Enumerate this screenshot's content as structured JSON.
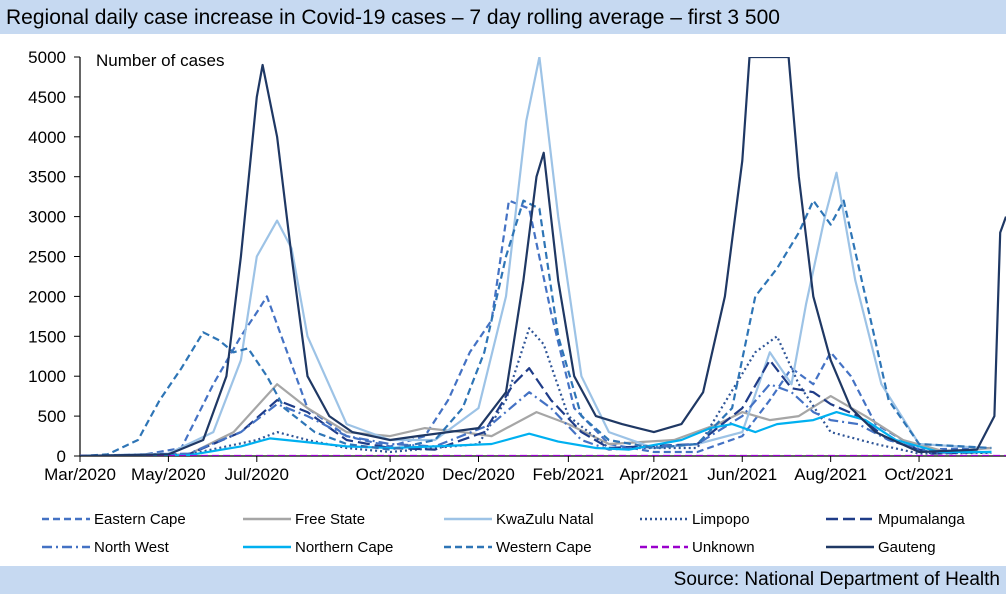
{
  "title": "Regional daily case increase in Covid-19 cases – 7 day rolling average – first 3 500",
  "source": "Source: National Department of Health",
  "chart_data": {
    "type": "line",
    "title": "Regional daily case increase in Covid-19 cases – 7 day rolling average – first 3 500",
    "ylabel": "Number of cases",
    "xlabel": "",
    "ylim": [
      0,
      5000
    ],
    "yticks": [
      0,
      500,
      1000,
      1500,
      2000,
      2500,
      3000,
      3500,
      4000,
      4500,
      5000
    ],
    "xlim": [
      "2020-03-01",
      "2021-11-30"
    ],
    "x_tick_labels": [
      {
        "date": "2020-03-01",
        "label": "Mar/2020"
      },
      {
        "date": "2020-05-01",
        "label": "May/2020"
      },
      {
        "date": "2020-07-01",
        "label": "Jul/2020"
      },
      {
        "date": "2020-10-01",
        "label": "Oct/2020"
      },
      {
        "date": "2020-12-01",
        "label": "Dec/2020"
      },
      {
        "date": "2021-02-01",
        "label": "Feb/2021"
      },
      {
        "date": "2021-04-01",
        "label": "Apr/2021"
      },
      {
        "date": "2021-06-01",
        "label": "Jun/2021"
      },
      {
        "date": "2021-08-01",
        "label": "Aug/2021"
      },
      {
        "date": "2021-10-01",
        "label": "Oct/2021"
      }
    ],
    "grid": false,
    "legend_position": "bottom",
    "series": [
      {
        "name": "Eastern Cape",
        "color": "#4472c4",
        "style": "dash",
        "points": [
          [
            "2020-03-01",
            0
          ],
          [
            "2020-04-15",
            20
          ],
          [
            "2020-05-10",
            100
          ],
          [
            "2020-06-01",
            900
          ],
          [
            "2020-06-20",
            1500
          ],
          [
            "2020-07-01",
            1800
          ],
          [
            "2020-07-08",
            2000
          ],
          [
            "2020-07-20",
            1400
          ],
          [
            "2020-08-05",
            600
          ],
          [
            "2020-09-01",
            250
          ],
          [
            "2020-10-01",
            120
          ],
          [
            "2020-10-25",
            250
          ],
          [
            "2020-11-10",
            700
          ],
          [
            "2020-11-25",
            1300
          ],
          [
            "2020-12-10",
            1700
          ],
          [
            "2020-12-22",
            3200
          ],
          [
            "2021-01-05",
            3100
          ],
          [
            "2021-01-20",
            1800
          ],
          [
            "2021-02-05",
            600
          ],
          [
            "2021-03-01",
            150
          ],
          [
            "2021-04-01",
            50
          ],
          [
            "2021-05-01",
            50
          ],
          [
            "2021-06-01",
            250
          ],
          [
            "2021-06-20",
            700
          ],
          [
            "2021-07-05",
            1100
          ],
          [
            "2021-07-20",
            900
          ],
          [
            "2021-08-01",
            1300
          ],
          [
            "2021-08-15",
            1000
          ],
          [
            "2021-09-01",
            400
          ],
          [
            "2021-10-01",
            80
          ],
          [
            "2021-11-20",
            100
          ]
        ]
      },
      {
        "name": "Free State",
        "color": "#a6a6a6",
        "style": "solid",
        "points": [
          [
            "2020-03-01",
            0
          ],
          [
            "2020-05-15",
            20
          ],
          [
            "2020-06-15",
            300
          ],
          [
            "2020-07-15",
            900
          ],
          [
            "2020-08-05",
            600
          ],
          [
            "2020-09-01",
            300
          ],
          [
            "2020-10-01",
            250
          ],
          [
            "2020-10-25",
            350
          ],
          [
            "2020-11-20",
            300
          ],
          [
            "2020-12-10",
            250
          ],
          [
            "2021-01-10",
            550
          ],
          [
            "2021-02-01",
            400
          ],
          [
            "2021-03-01",
            150
          ],
          [
            "2021-04-15",
            200
          ],
          [
            "2021-05-15",
            400
          ],
          [
            "2021-06-01",
            550
          ],
          [
            "2021-06-20",
            450
          ],
          [
            "2021-07-10",
            500
          ],
          [
            "2021-08-01",
            750
          ],
          [
            "2021-08-25",
            500
          ],
          [
            "2021-09-20",
            200
          ],
          [
            "2021-10-20",
            50
          ],
          [
            "2021-11-20",
            100
          ]
        ]
      },
      {
        "name": "KwaZulu Natal",
        "color": "#9dc3e6",
        "style": "solid",
        "points": [
          [
            "2020-03-01",
            0
          ],
          [
            "2020-05-01",
            30
          ],
          [
            "2020-06-01",
            300
          ],
          [
            "2020-06-20",
            1200
          ],
          [
            "2020-07-01",
            2500
          ],
          [
            "2020-07-15",
            2950
          ],
          [
            "2020-07-25",
            2600
          ],
          [
            "2020-08-05",
            1500
          ],
          [
            "2020-09-01",
            400
          ],
          [
            "2020-10-01",
            200
          ],
          [
            "2020-11-01",
            200
          ],
          [
            "2020-12-01",
            600
          ],
          [
            "2020-12-20",
            2000
          ],
          [
            "2021-01-03",
            4200
          ],
          [
            "2021-01-12",
            5000
          ],
          [
            "2021-01-25",
            3000
          ],
          [
            "2021-02-10",
            1000
          ],
          [
            "2021-03-01",
            300
          ],
          [
            "2021-04-01",
            100
          ],
          [
            "2021-05-01",
            150
          ],
          [
            "2021-06-01",
            300
          ],
          [
            "2021-06-20",
            1300
          ],
          [
            "2021-07-05",
            900
          ],
          [
            "2021-07-15",
            1900
          ],
          [
            "2021-07-28",
            3000
          ],
          [
            "2021-08-05",
            3550
          ],
          [
            "2021-08-18",
            2200
          ],
          [
            "2021-09-05",
            900
          ],
          [
            "2021-10-01",
            150
          ],
          [
            "2021-11-15",
            100
          ]
        ]
      },
      {
        "name": "Limpopo",
        "color": "#2f5597",
        "style": "dot",
        "points": [
          [
            "2020-03-01",
            0
          ],
          [
            "2020-05-15",
            20
          ],
          [
            "2020-07-01",
            200
          ],
          [
            "2020-07-15",
            300
          ],
          [
            "2020-08-05",
            200
          ],
          [
            "2020-09-01",
            100
          ],
          [
            "2020-10-01",
            50
          ],
          [
            "2020-12-01",
            150
          ],
          [
            "2020-12-20",
            700
          ],
          [
            "2021-01-05",
            1600
          ],
          [
            "2021-01-15",
            1400
          ],
          [
            "2021-02-01",
            500
          ],
          [
            "2021-03-01",
            100
          ],
          [
            "2021-05-01",
            100
          ],
          [
            "2021-06-10",
            1300
          ],
          [
            "2021-06-25",
            1500
          ],
          [
            "2021-07-10",
            900
          ],
          [
            "2021-08-01",
            300
          ],
          [
            "2021-09-01",
            150
          ],
          [
            "2021-10-01",
            30
          ],
          [
            "2021-11-20",
            40
          ]
        ]
      },
      {
        "name": "Mpumalanga",
        "color": "#1f3c88",
        "style": "longdash",
        "points": [
          [
            "2020-03-01",
            0
          ],
          [
            "2020-05-15",
            20
          ],
          [
            "2020-06-20",
            300
          ],
          [
            "2020-07-15",
            700
          ],
          [
            "2020-08-05",
            550
          ],
          [
            "2020-09-01",
            200
          ],
          [
            "2020-10-01",
            100
          ],
          [
            "2020-11-01",
            80
          ],
          [
            "2020-12-05",
            300
          ],
          [
            "2020-12-25",
            900
          ],
          [
            "2021-01-05",
            1100
          ],
          [
            "2021-01-20",
            700
          ],
          [
            "2021-02-10",
            300
          ],
          [
            "2021-03-01",
            100
          ],
          [
            "2021-05-01",
            150
          ],
          [
            "2021-06-01",
            600
          ],
          [
            "2021-06-20",
            1200
          ],
          [
            "2021-07-05",
            850
          ],
          [
            "2021-07-20",
            800
          ],
          [
            "2021-08-01",
            650
          ],
          [
            "2021-08-20",
            500
          ],
          [
            "2021-09-10",
            200
          ],
          [
            "2021-10-10",
            30
          ],
          [
            "2021-11-20",
            50
          ]
        ]
      },
      {
        "name": "North West",
        "color": "#4472c4",
        "style": "dashdot",
        "points": [
          [
            "2020-03-01",
            0
          ],
          [
            "2020-05-15",
            30
          ],
          [
            "2020-06-20",
            300
          ],
          [
            "2020-07-15",
            650
          ],
          [
            "2020-08-05",
            500
          ],
          [
            "2020-09-01",
            250
          ],
          [
            "2020-10-01",
            150
          ],
          [
            "2020-11-01",
            120
          ],
          [
            "2020-12-10",
            400
          ],
          [
            "2021-01-05",
            800
          ],
          [
            "2021-01-20",
            600
          ],
          [
            "2021-02-10",
            200
          ],
          [
            "2021-03-01",
            80
          ],
          [
            "2021-05-01",
            150
          ],
          [
            "2021-06-01",
            500
          ],
          [
            "2021-06-20",
            900
          ],
          [
            "2021-07-05",
            800
          ],
          [
            "2021-07-20",
            550
          ],
          [
            "2021-08-01",
            450
          ],
          [
            "2021-08-20",
            400
          ],
          [
            "2021-09-10",
            200
          ],
          [
            "2021-10-10",
            40
          ],
          [
            "2021-11-20",
            50
          ]
        ]
      },
      {
        "name": "Northern Cape",
        "color": "#00b0f0",
        "style": "solid",
        "points": [
          [
            "2020-03-01",
            0
          ],
          [
            "2020-05-15",
            10
          ],
          [
            "2020-06-20",
            120
          ],
          [
            "2020-07-10",
            220
          ],
          [
            "2020-08-01",
            180
          ],
          [
            "2020-09-01",
            120
          ],
          [
            "2020-10-01",
            100
          ],
          [
            "2020-11-01",
            120
          ],
          [
            "2020-12-10",
            150
          ],
          [
            "2021-01-05",
            280
          ],
          [
            "2021-01-25",
            180
          ],
          [
            "2021-02-20",
            100
          ],
          [
            "2021-03-15",
            80
          ],
          [
            "2021-04-20",
            200
          ],
          [
            "2021-05-10",
            350
          ],
          [
            "2021-05-25",
            400
          ],
          [
            "2021-06-10",
            300
          ],
          [
            "2021-06-25",
            400
          ],
          [
            "2021-07-20",
            450
          ],
          [
            "2021-08-05",
            550
          ],
          [
            "2021-08-25",
            450
          ],
          [
            "2021-09-15",
            200
          ],
          [
            "2021-10-15",
            50
          ],
          [
            "2021-11-20",
            50
          ]
        ]
      },
      {
        "name": "Western Cape",
        "color": "#2e75b6",
        "style": "dash",
        "points": [
          [
            "2020-03-01",
            0
          ],
          [
            "2020-03-20",
            20
          ],
          [
            "2020-04-10",
            200
          ],
          [
            "2020-04-25",
            700
          ],
          [
            "2020-05-10",
            1100
          ],
          [
            "2020-05-25",
            1550
          ],
          [
            "2020-06-05",
            1450
          ],
          [
            "2020-06-15",
            1300
          ],
          [
            "2020-06-25",
            1350
          ],
          [
            "2020-07-08",
            1000
          ],
          [
            "2020-07-20",
            600
          ],
          [
            "2020-08-10",
            300
          ],
          [
            "2020-09-01",
            150
          ],
          [
            "2020-10-01",
            80
          ],
          [
            "2020-11-01",
            200
          ],
          [
            "2020-11-20",
            600
          ],
          [
            "2020-12-05",
            1300
          ],
          [
            "2020-12-20",
            2500
          ],
          [
            "2021-01-01",
            3200
          ],
          [
            "2021-01-12",
            3100
          ],
          [
            "2021-01-25",
            1500
          ],
          [
            "2021-02-10",
            500
          ],
          [
            "2021-03-01",
            200
          ],
          [
            "2021-04-01",
            100
          ],
          [
            "2021-05-01",
            150
          ],
          [
            "2021-05-25",
            600
          ],
          [
            "2021-06-10",
            2000
          ],
          [
            "2021-06-25",
            2350
          ],
          [
            "2021-07-10",
            2800
          ],
          [
            "2021-07-20",
            3200
          ],
          [
            "2021-08-01",
            2900
          ],
          [
            "2021-08-10",
            3200
          ],
          [
            "2021-08-25",
            2000
          ],
          [
            "2021-09-10",
            700
          ],
          [
            "2021-10-01",
            150
          ],
          [
            "2021-11-20",
            100
          ]
        ]
      },
      {
        "name": "Unknown",
        "color": "#9900cc",
        "style": "dash",
        "points": [
          [
            "2020-03-01",
            0
          ],
          [
            "2021-11-30",
            0
          ]
        ]
      },
      {
        "name": "Gauteng",
        "color": "#1f3864",
        "style": "solid",
        "points": [
          [
            "2020-03-01",
            0
          ],
          [
            "2020-05-01",
            20
          ],
          [
            "2020-05-25",
            200
          ],
          [
            "2020-06-10",
            1000
          ],
          [
            "2020-06-20",
            2500
          ],
          [
            "2020-07-01",
            4500
          ],
          [
            "2020-07-05",
            4900
          ],
          [
            "2020-07-15",
            4000
          ],
          [
            "2020-07-25",
            2500
          ],
          [
            "2020-08-05",
            1000
          ],
          [
            "2020-08-20",
            500
          ],
          [
            "2020-09-05",
            300
          ],
          [
            "2020-10-01",
            200
          ],
          [
            "2020-10-20",
            250
          ],
          [
            "2020-11-10",
            300
          ],
          [
            "2020-12-01",
            350
          ],
          [
            "2020-12-20",
            800
          ],
          [
            "2021-01-01",
            2200
          ],
          [
            "2021-01-10",
            3500
          ],
          [
            "2021-01-15",
            3800
          ],
          [
            "2021-01-25",
            2200
          ],
          [
            "2021-02-05",
            1000
          ],
          [
            "2021-02-20",
            500
          ],
          [
            "2021-03-10",
            400
          ],
          [
            "2021-04-01",
            300
          ],
          [
            "2021-04-20",
            400
          ],
          [
            "2021-05-05",
            800
          ],
          [
            "2021-05-20",
            2000
          ],
          [
            "2021-06-01",
            3700
          ],
          [
            "2021-06-06",
            5000
          ],
          [
            "2021-07-03",
            5000
          ],
          [
            "2021-07-10",
            3500
          ],
          [
            "2021-07-20",
            2000
          ],
          [
            "2021-08-01",
            1200
          ],
          [
            "2021-08-15",
            600
          ],
          [
            "2021-09-01",
            300
          ],
          [
            "2021-10-01",
            50
          ],
          [
            "2021-11-10",
            80
          ],
          [
            "2021-11-22",
            500
          ],
          [
            "2021-11-26",
            2800
          ],
          [
            "2021-11-30",
            3000
          ]
        ]
      }
    ]
  }
}
